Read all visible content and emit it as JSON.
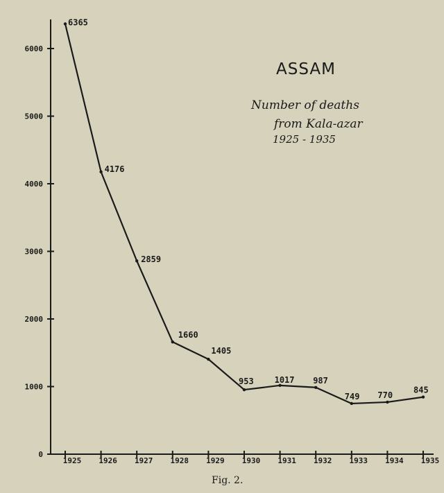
{
  "chart_data": {
    "type": "line",
    "title": "ASSAM",
    "subtitle_lines": [
      "Number of deaths",
      "from Kala-azar",
      "1925 - 1935"
    ],
    "caption": "Fig. 2.",
    "x": [
      "1925",
      "1926",
      "1927",
      "1928",
      "1929",
      "1930",
      "1931",
      "1932",
      "1933",
      "1934",
      "1935"
    ],
    "values": [
      6365,
      4176,
      2859,
      1660,
      1405,
      953,
      1017,
      987,
      749,
      770,
      845
    ],
    "data_labels": [
      "6365",
      "4176",
      "2859",
      "1660",
      "1405",
      "953",
      "1017",
      "987",
      "749",
      "770",
      "845"
    ],
    "yticks": [
      0,
      1000,
      2000,
      3000,
      4000,
      5000,
      6000
    ],
    "ylim": [
      0,
      6000
    ],
    "grid": false,
    "colors": {
      "line": "#1a1a1a",
      "background": "#d6d2bc"
    }
  }
}
